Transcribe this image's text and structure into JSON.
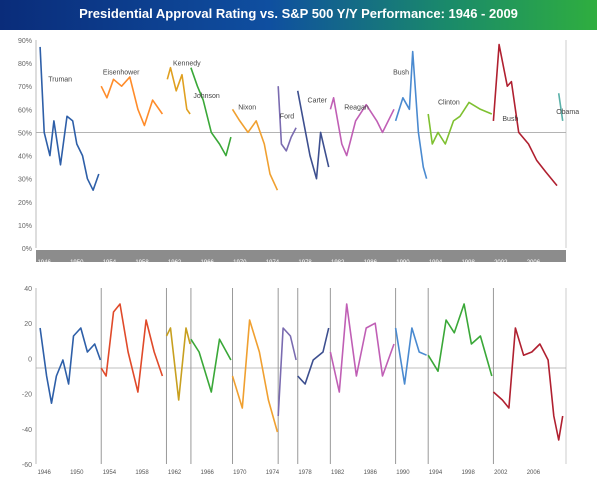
{
  "title": "Presidential Approval Rating vs. S&P 500 Y/Y Performance: 1946 - 2009",
  "colors": {
    "header_start": "#0a2c7a",
    "header_end": "#2fae3f",
    "bar_gray": "#8c8c8c",
    "divider": "#999999"
  },
  "chart_data": [
    {
      "type": "line",
      "ylabel": "",
      "ylim": [
        0,
        90
      ],
      "yticks": [
        "0%",
        "10%",
        "20%",
        "30%",
        "40%",
        "50%",
        "60%",
        "70%",
        "80%",
        "90%"
      ],
      "xlim": [
        1945,
        2010
      ],
      "xticks": [
        "1946",
        "1950",
        "1954",
        "1958",
        "1962",
        "1966",
        "1970",
        "1974",
        "1978",
        "1982",
        "1986",
        "1990",
        "1994",
        "1998",
        "2002",
        "2006"
      ],
      "reference_line": 50,
      "grid": false,
      "series": [
        {
          "name": "Truman",
          "color": "#2e5fa8",
          "label_x": 1946.5,
          "label_y": 72,
          "points": [
            [
              1945.5,
              87
            ],
            [
              1946,
              50
            ],
            [
              1946.7,
              40
            ],
            [
              1947.2,
              55
            ],
            [
              1948,
              36
            ],
            [
              1948.8,
              57
            ],
            [
              1949.5,
              55
            ],
            [
              1950,
              45
            ],
            [
              1950.7,
              40
            ],
            [
              1951.3,
              30
            ],
            [
              1952,
              25
            ],
            [
              1952.7,
              32
            ]
          ]
        },
        {
          "name": "Eisenhower",
          "color": "#ff8c2a",
          "label_x": 1953.2,
          "label_y": 75,
          "points": [
            [
              1953,
              70
            ],
            [
              1953.7,
              65
            ],
            [
              1954.5,
              73
            ],
            [
              1955.5,
              70
            ],
            [
              1956.5,
              74
            ],
            [
              1957.5,
              60
            ],
            [
              1958.3,
              53
            ],
            [
              1959.3,
              64
            ],
            [
              1960.5,
              58
            ]
          ]
        },
        {
          "name": "Kennedy",
          "color": "#e0a020",
          "label_x": 1961.8,
          "label_y": 79,
          "points": [
            [
              1961.1,
              73
            ],
            [
              1961.5,
              78
            ],
            [
              1962.2,
              68
            ],
            [
              1962.9,
              75
            ],
            [
              1963.5,
              60
            ],
            [
              1963.9,
              58
            ]
          ]
        },
        {
          "name": "Johnson",
          "color": "#3aa838",
          "label_x": 1964.3,
          "label_y": 65,
          "points": [
            [
              1964,
              78
            ],
            [
              1964.8,
              70
            ],
            [
              1965.5,
              64
            ],
            [
              1966.5,
              50
            ],
            [
              1967.5,
              45
            ],
            [
              1968.3,
              40
            ],
            [
              1968.9,
              48
            ]
          ]
        },
        {
          "name": "Nixon",
          "color": "#f0a030",
          "label_x": 1969.8,
          "label_y": 60,
          "points": [
            [
              1969.1,
              60
            ],
            [
              1970,
              55
            ],
            [
              1971,
              50
            ],
            [
              1972,
              55
            ],
            [
              1973,
              45
            ],
            [
              1973.7,
              32
            ],
            [
              1974.6,
              25
            ]
          ]
        },
        {
          "name": "Ford",
          "color": "#7a6bb0",
          "label_x": 1974.9,
          "label_y": 56,
          "points": [
            [
              1974.7,
              70
            ],
            [
              1975.1,
              45
            ],
            [
              1975.7,
              42
            ],
            [
              1976.3,
              48
            ],
            [
              1976.9,
              52
            ]
          ]
        },
        {
          "name": "Carter",
          "color": "#3d4f8f",
          "label_x": 1978.3,
          "label_y": 63,
          "points": [
            [
              1977.1,
              68
            ],
            [
              1977.8,
              55
            ],
            [
              1978.6,
              40
            ],
            [
              1979.4,
              30
            ],
            [
              1979.9,
              50
            ],
            [
              1980.9,
              35
            ]
          ]
        },
        {
          "name": "Reagan",
          "color": "#c05fb5",
          "label_x": 1982.8,
          "label_y": 60,
          "points": [
            [
              1981.1,
              60
            ],
            [
              1981.5,
              65
            ],
            [
              1982.5,
              45
            ],
            [
              1983.1,
              40
            ],
            [
              1984.2,
              55
            ],
            [
              1985.5,
              62
            ],
            [
              1986.8,
              55
            ],
            [
              1987.5,
              50
            ],
            [
              1988.9,
              60
            ]
          ]
        },
        {
          "name": "Bush",
          "color": "#4a8ad0",
          "label_x": 1988.8,
          "label_y": 75,
          "points": [
            [
              1989.1,
              55
            ],
            [
              1990,
              65
            ],
            [
              1990.8,
              60
            ],
            [
              1991.2,
              85
            ],
            [
              1991.9,
              50
            ],
            [
              1992.5,
              35
            ],
            [
              1992.9,
              30
            ]
          ]
        },
        {
          "name": "Clinton",
          "color": "#7ec030",
          "label_x": 1994.3,
          "label_y": 62,
          "points": [
            [
              1993.1,
              58
            ],
            [
              1993.6,
              45
            ],
            [
              1994.3,
              50
            ],
            [
              1995.2,
              45
            ],
            [
              1996.2,
              55
            ],
            [
              1997,
              57
            ],
            [
              1998.1,
              63
            ],
            [
              1999.5,
              60
            ],
            [
              2000.9,
              58
            ]
          ]
        },
        {
          "name": "Bush",
          "color": "#b02030",
          "label_x": 2002.2,
          "label_y": 55,
          "points": [
            [
              2001.1,
              55
            ],
            [
              2001.8,
              88
            ],
            [
              2002.8,
              70
            ],
            [
              2003.3,
              72
            ],
            [
              2004.2,
              50
            ],
            [
              2005.4,
              45
            ],
            [
              2006.4,
              38
            ],
            [
              2007.5,
              33
            ],
            [
              2008.9,
              27
            ]
          ]
        },
        {
          "name": "Obama",
          "color": "#58b0a8",
          "label_x": 2008.8,
          "label_y": 58,
          "points": [
            [
              2009.1,
              67
            ],
            [
              2009.6,
              55
            ]
          ]
        }
      ]
    },
    {
      "type": "line",
      "ylabel": "",
      "ylim": [
        -60,
        50
      ],
      "yticks": [
        "-60",
        "-40",
        "-20",
        "0",
        "20",
        "40"
      ],
      "xlim": [
        1945,
        2010
      ],
      "xticks": [
        "1946",
        "1950",
        "1954",
        "1958",
        "1962",
        "1966",
        "1970",
        "1974",
        "1978",
        "1982",
        "1986",
        "1990",
        "1994",
        "1998",
        "2002",
        "2006"
      ],
      "reference_line": 0,
      "grid": false,
      "series": [
        {
          "color": "#2e5fa8",
          "points": [
            [
              1945.5,
              25
            ],
            [
              1946.3,
              -5
            ],
            [
              1946.9,
              -22
            ],
            [
              1947.5,
              -5
            ],
            [
              1948.3,
              5
            ],
            [
              1949,
              -10
            ],
            [
              1949.6,
              20
            ],
            [
              1950.5,
              25
            ],
            [
              1951.3,
              10
            ],
            [
              1952.2,
              15
            ],
            [
              1952.9,
              5
            ]
          ]
        },
        {
          "color": "#e04a2a",
          "points": [
            [
              1953,
              0
            ],
            [
              1953.6,
              -5
            ],
            [
              1954.5,
              35
            ],
            [
              1955.3,
              40
            ],
            [
              1956.3,
              10
            ],
            [
              1957.5,
              -15
            ],
            [
              1958.5,
              30
            ],
            [
              1959.5,
              10
            ],
            [
              1960.5,
              -5
            ]
          ]
        },
        {
          "color": "#c8a020",
          "points": [
            [
              1961,
              20
            ],
            [
              1961.5,
              25
            ],
            [
              1962.5,
              -20
            ],
            [
              1963.4,
              25
            ],
            [
              1963.9,
              15
            ]
          ]
        },
        {
          "color": "#3aa838",
          "points": [
            [
              1964,
              18
            ],
            [
              1965,
              10
            ],
            [
              1966.5,
              -15
            ],
            [
              1967.5,
              18
            ],
            [
              1968.9,
              5
            ]
          ]
        },
        {
          "color": "#f0a030",
          "points": [
            [
              1969.1,
              -5
            ],
            [
              1970.3,
              -25
            ],
            [
              1971.2,
              30
            ],
            [
              1972.4,
              10
            ],
            [
              1973.5,
              -20
            ],
            [
              1974.6,
              -40
            ]
          ]
        },
        {
          "color": "#7a6bb0",
          "points": [
            [
              1974.7,
              -30
            ],
            [
              1975.3,
              25
            ],
            [
              1976.2,
              20
            ],
            [
              1976.9,
              5
            ]
          ]
        },
        {
          "color": "#3d4f8f",
          "points": [
            [
              1977.1,
              -5
            ],
            [
              1978,
              -10
            ],
            [
              1979,
              5
            ],
            [
              1980.2,
              10
            ],
            [
              1980.9,
              25
            ]
          ]
        },
        {
          "color": "#c05fb5",
          "points": [
            [
              1981.1,
              10
            ],
            [
              1982.2,
              -15
            ],
            [
              1983.1,
              40
            ],
            [
              1984.3,
              -5
            ],
            [
              1985.5,
              25
            ],
            [
              1986.6,
              28
            ],
            [
              1987.5,
              -5
            ],
            [
              1988.9,
              15
            ]
          ]
        },
        {
          "color": "#4a8ad0",
          "points": [
            [
              1989.1,
              25
            ],
            [
              1990.2,
              -10
            ],
            [
              1991.1,
              25
            ],
            [
              1992,
              10
            ],
            [
              1992.9,
              8
            ]
          ]
        },
        {
          "color": "#3aa838",
          "points": [
            [
              1993.1,
              8
            ],
            [
              1994.3,
              -2
            ],
            [
              1995.3,
              30
            ],
            [
              1996.3,
              22
            ],
            [
              1997.5,
              40
            ],
            [
              1998.4,
              15
            ],
            [
              1999.5,
              20
            ],
            [
              2000.9,
              -5
            ]
          ]
        },
        {
          "color": "#b02030",
          "points": [
            [
              2001.1,
              -15
            ],
            [
              2002.2,
              -20
            ],
            [
              2003,
              -25
            ],
            [
              2003.8,
              25
            ],
            [
              2004.8,
              8
            ],
            [
              2005.8,
              10
            ],
            [
              2006.8,
              15
            ],
            [
              2007.8,
              5
            ],
            [
              2008.5,
              -30
            ],
            [
              2009.1,
              -45
            ],
            [
              2009.6,
              -30
            ]
          ]
        }
      ]
    }
  ]
}
